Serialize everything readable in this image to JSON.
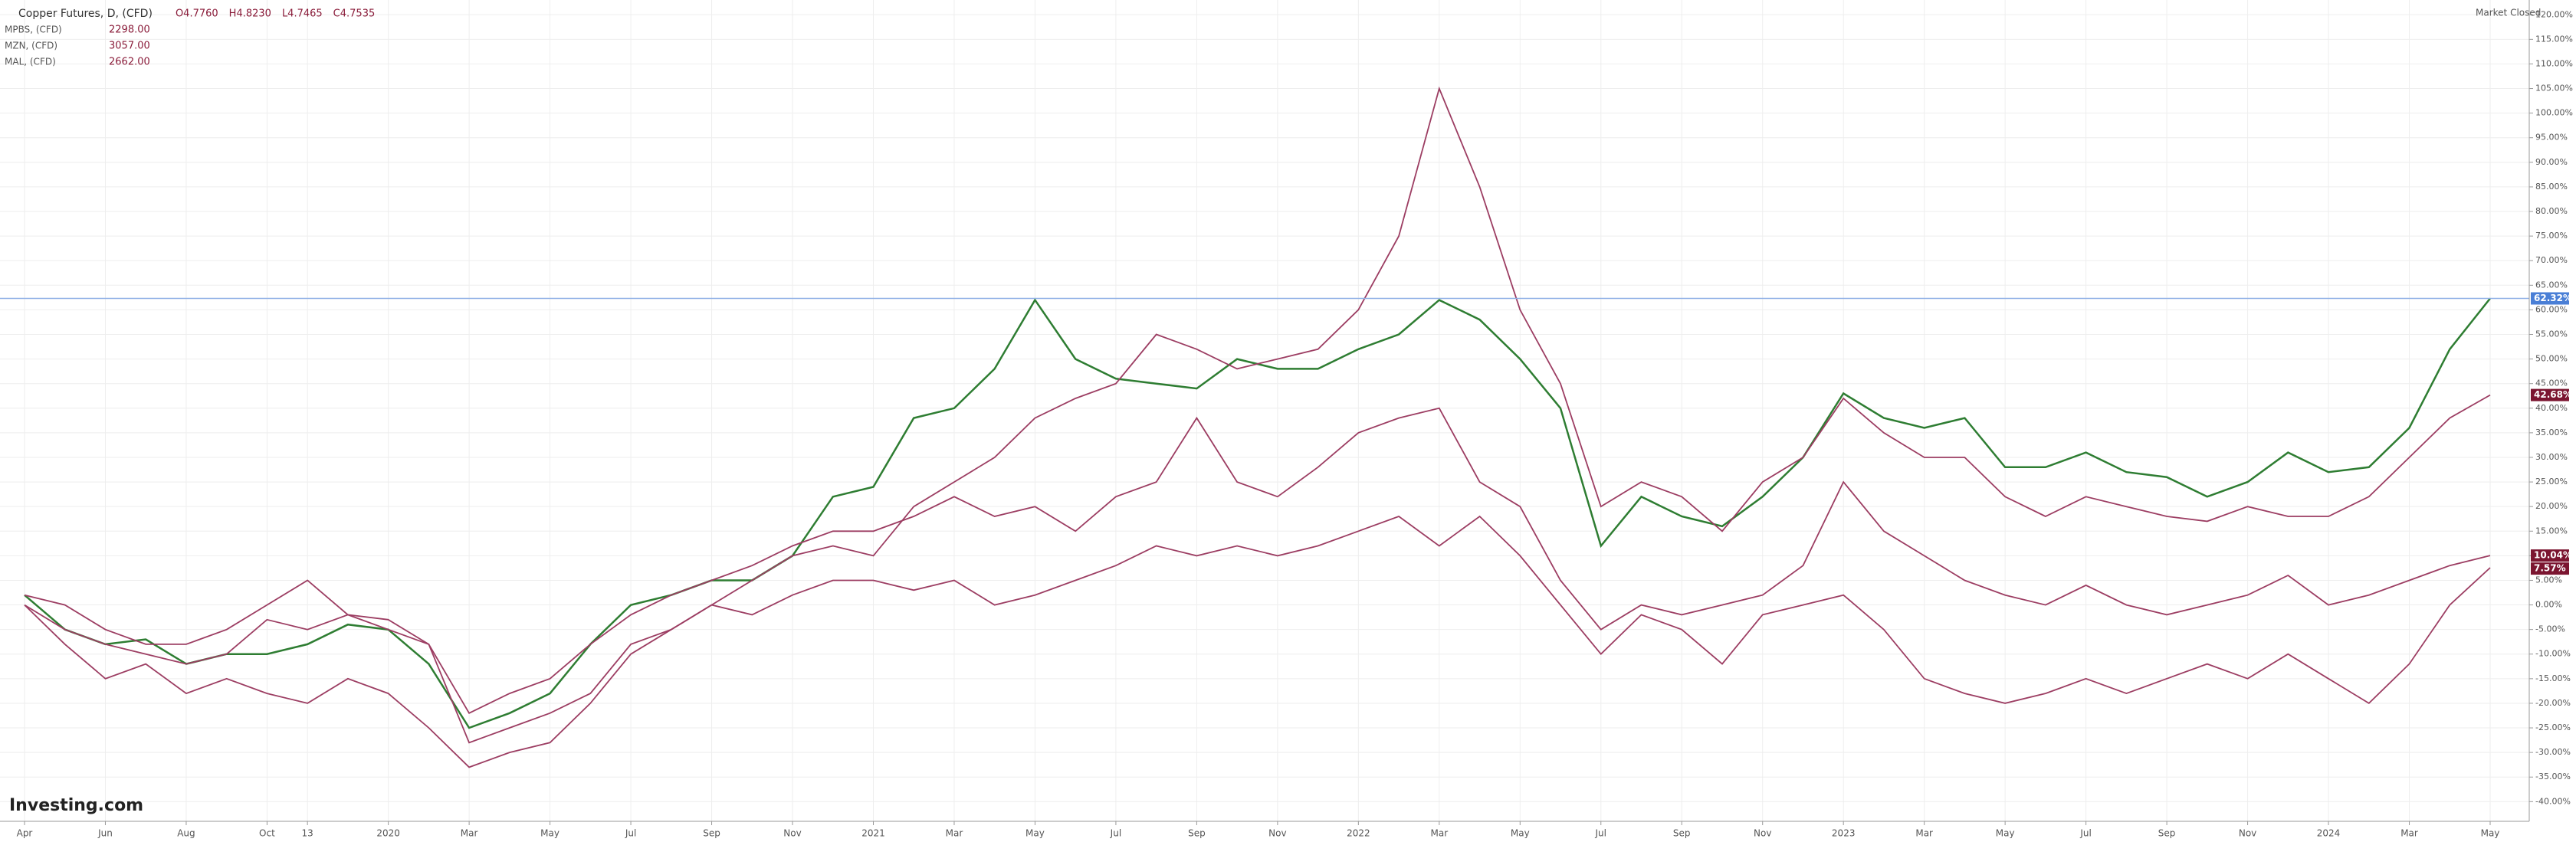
{
  "chart_data": {
    "type": "line",
    "categories": [
      "Apr",
      null,
      "Jun",
      null,
      "Aug",
      null,
      "Oct",
      "13",
      null,
      "2020",
      null,
      "Mar",
      null,
      "May",
      null,
      "Jul",
      null,
      "Sep",
      null,
      "Nov",
      null,
      "2021",
      null,
      "Mar",
      null,
      "May",
      null,
      "Jul",
      null,
      "Sep",
      null,
      "Nov",
      null,
      "2022",
      null,
      "Mar",
      null,
      "May",
      null,
      "Jul",
      null,
      "Sep",
      null,
      "Nov",
      null,
      "2023",
      null,
      "Mar",
      null,
      "May",
      null,
      "Jul",
      null,
      "Sep",
      null,
      "Nov",
      null,
      "2024",
      null,
      "Mar",
      null,
      "May"
    ],
    "series": [
      {
        "name": "Copper Futures, D, (CFD)",
        "color": "#2e7d32",
        "ohlc": [
          "O4.7760",
          "H4.8230",
          "L4.7465",
          "C4.7535"
        ],
        "last_label": "62.32%",
        "label_color": "#4a7fd6",
        "values": [
          2,
          -5,
          -8,
          -7,
          -12,
          -10,
          -10,
          -8,
          -4,
          -5,
          -12,
          -25,
          -22,
          -18,
          -8,
          0,
          2,
          5,
          5,
          10,
          22,
          24,
          38,
          40,
          48,
          62,
          50,
          46,
          45,
          44,
          50,
          48,
          48,
          52,
          55,
          62,
          58,
          50,
          40,
          12,
          22,
          18,
          16,
          22,
          30,
          43,
          38,
          36,
          38,
          28,
          28,
          31,
          27,
          26,
          22,
          25,
          31,
          27,
          28,
          36,
          52,
          62.32
        ]
      },
      {
        "name": "MPBS, (CFD)",
        "color": "#9c3d62",
        "quote": "2298.00",
        "last_label": "7.57%",
        "label_color": "#7b1530",
        "values": [
          2,
          0,
          -5,
          -8,
          -8,
          -5,
          0,
          5,
          -2,
          -5,
          -8,
          -28,
          -25,
          -22,
          -18,
          -8,
          -5,
          0,
          -2,
          2,
          5,
          5,
          3,
          5,
          0,
          2,
          5,
          8,
          12,
          10,
          12,
          10,
          12,
          15,
          18,
          12,
          18,
          10,
          0,
          -10,
          -2,
          -5,
          -12,
          -2,
          0,
          2,
          -5,
          -15,
          -18,
          -20,
          -18,
          -15,
          -18,
          -15,
          -12,
          -15,
          -10,
          -15,
          -20,
          -12,
          0,
          7.57
        ]
      },
      {
        "name": "MZN, (CFD)",
        "color": "#9c3d62",
        "quote": "3057.00",
        "last_label": "42.68%",
        "label_color": "#7b1530",
        "values": [
          0,
          -8,
          -15,
          -12,
          -18,
          -15,
          -18,
          -20,
          -15,
          -18,
          -25,
          -33,
          -30,
          -28,
          -20,
          -10,
          -5,
          0,
          5,
          10,
          12,
          10,
          20,
          25,
          30,
          38,
          42,
          45,
          55,
          52,
          48,
          50,
          52,
          60,
          75,
          105,
          85,
          60,
          45,
          20,
          25,
          22,
          15,
          25,
          30,
          42,
          35,
          30,
          30,
          22,
          18,
          22,
          20,
          18,
          17,
          20,
          18,
          18,
          22,
          30,
          38,
          42.68
        ]
      },
      {
        "name": "MAL, (CFD)",
        "color": "#9c3d62",
        "quote": "2662.00",
        "last_label": "10.04%",
        "label_color": "#7b1530",
        "values": [
          0,
          -5,
          -8,
          -10,
          -12,
          -10,
          -3,
          -5,
          -2,
          -3,
          -8,
          -22,
          -18,
          -15,
          -8,
          -2,
          2,
          5,
          8,
          12,
          15,
          15,
          18,
          22,
          18,
          20,
          15,
          22,
          25,
          38,
          25,
          22,
          28,
          35,
          38,
          40,
          25,
          20,
          5,
          -5,
          0,
          -2,
          0,
          2,
          8,
          25,
          15,
          10,
          5,
          2,
          0,
          4,
          0,
          -2,
          0,
          2,
          6,
          0,
          2,
          5,
          8,
          10.04
        ]
      }
    ],
    "ylim": [
      -44,
      123
    ],
    "yticks": [
      {
        "value": 120,
        "label": "120.00%"
      },
      {
        "value": 115,
        "label": "115.00%"
      },
      {
        "value": 110,
        "label": "110.00%"
      },
      {
        "value": 105,
        "label": "105.00%"
      },
      {
        "value": 100,
        "label": "100.00%"
      },
      {
        "value": 95,
        "label": "95.00%"
      },
      {
        "value": 90,
        "label": "90.00%"
      },
      {
        "value": 85,
        "label": "85.00%"
      },
      {
        "value": 80,
        "label": "80.00%"
      },
      {
        "value": 75,
        "label": "75.00%"
      },
      {
        "value": 70,
        "label": "70.00%"
      },
      {
        "value": 65,
        "label": "65.00%"
      },
      {
        "value": 60,
        "label": "60.00%"
      },
      {
        "value": 55,
        "label": "55.00%"
      },
      {
        "value": 50,
        "label": "50.00%"
      },
      {
        "value": 45,
        "label": "45.00%"
      },
      {
        "value": 40,
        "label": "40.00%"
      },
      {
        "value": 35,
        "label": "35.00%"
      },
      {
        "value": 30,
        "label": "30.00%"
      },
      {
        "value": 25,
        "label": "25.00%"
      },
      {
        "value": 20,
        "label": "20.00%"
      },
      {
        "value": 15,
        "label": "15.00%"
      },
      {
        "value": 10,
        "label": "10.00%"
      },
      {
        "value": 5,
        "label": "5.00%"
      },
      {
        "value": 0,
        "label": "0.00%"
      },
      {
        "value": -5,
        "label": "-5.00%"
      },
      {
        "value": -10,
        "label": "-10.00%"
      },
      {
        "value": -15,
        "label": "-15.00%"
      },
      {
        "value": -20,
        "label": "-20.00%"
      },
      {
        "value": -25,
        "label": "-25.00%"
      },
      {
        "value": -30,
        "label": "-30.00%"
      },
      {
        "value": -35,
        "label": "-35.00%"
      },
      {
        "value": -40,
        "label": "-40.00%"
      }
    ],
    "grid": true,
    "status": "Market Closed",
    "brand": "Investing.com"
  }
}
